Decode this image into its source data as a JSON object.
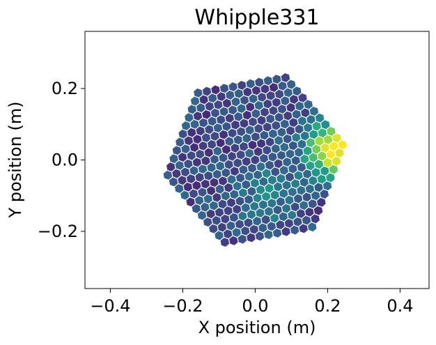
{
  "chart_data": {
    "type": "heatmap",
    "title": "Whipple331",
    "xlabel": "X position (m)",
    "ylabel": "Y position (m)",
    "xlim": [
      -0.47,
      0.48
    ],
    "ylim": [
      -0.36,
      0.36
    ],
    "xticks": [
      -0.4,
      -0.2,
      0.0,
      0.2,
      0.4
    ],
    "xtick_labels": [
      "−0.4",
      "−0.2",
      "0.0",
      "0.2",
      "0.4"
    ],
    "yticks": [
      -0.2,
      0.0,
      0.2
    ],
    "ytick_labels": [
      "−0.2",
      "0.0",
      "0.2"
    ],
    "grid": false,
    "colormap": "viridis",
    "camera": {
      "pixel_pitch_m": 0.0245,
      "rings": 10,
      "rotation_deg": 10
    },
    "hotspot": {
      "x": 0.22,
      "y": 0.03
    },
    "secondary_blob": {
      "x": 0.03,
      "y": -0.1
    },
    "color_range": [
      0.0,
      1.0
    ]
  }
}
